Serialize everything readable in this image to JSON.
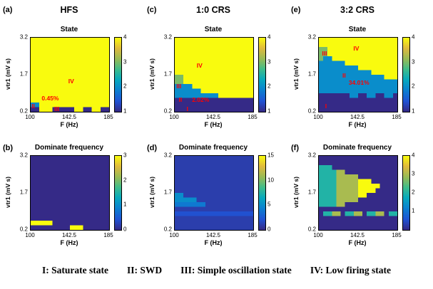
{
  "figure": {
    "background": "#ffffff",
    "annotation_color": "#ff0000"
  },
  "colormap": [
    [
      0.0,
      "#352a87"
    ],
    [
      0.14,
      "#2053d4"
    ],
    [
      0.29,
      "#0c80d0"
    ],
    [
      0.43,
      "#07a9bf"
    ],
    [
      0.57,
      "#3dbc8d"
    ],
    [
      0.71,
      "#95bb57"
    ],
    [
      0.86,
      "#e0ba3e"
    ],
    [
      1.0,
      "#f9fb0e"
    ]
  ],
  "caption": {
    "items": [
      "I: Saturate state",
      "II: SWD",
      "III: Simple oscillation state",
      "IV: Low firing state"
    ]
  },
  "chart_data": [
    {
      "type": "heatmap",
      "panel": "a",
      "row": "top",
      "panel_label": "(a)",
      "column_header": "HFS",
      "title": "State",
      "x": {
        "label": "F (Hz)",
        "range": [
          100,
          185
        ],
        "ticks": [
          100,
          142.5,
          185
        ]
      },
      "y": {
        "label": "vtr1 (mV s)",
        "range": [
          0.2,
          3.2
        ],
        "ticks": [
          3.2,
          1.7,
          0.2
        ]
      },
      "colorbar": {
        "domain": [
          1,
          4
        ],
        "ticks": [
          4,
          3,
          2,
          1
        ]
      },
      "annotations": [
        {
          "text": "IV",
          "x": 48,
          "y": 55
        },
        {
          "text": "0.45%",
          "x": 14,
          "y": 78
        },
        {
          "text": "II",
          "x": 1,
          "y": 88
        },
        {
          "text": "III",
          "x": 30,
          "y": 92
        }
      ],
      "values_encoding": "hex char per cell; rows top(v=3.2) to bottom(v=0.2); cols left(F=100) to right(F=185)",
      "values": [
        "444444444444444444",
        "444444444444444444",
        "444444444444444444",
        "444444444444444444",
        "444444444444444444",
        "444444444444444444",
        "444444444444444444",
        "444444444444444444",
        "444444444444444444",
        "444444444444444444",
        "444444444444444444",
        "444444444444444444",
        "444444444444444444",
        "444444444444444444",
        "224444444444444444",
        "114441111144114411"
      ]
    },
    {
      "type": "heatmap",
      "panel": "c",
      "row": "top",
      "panel_label": "(c)",
      "column_header": "1:0 CRS",
      "title": "State",
      "x": {
        "label": "F (Hz)",
        "range": [
          100,
          185
        ],
        "ticks": [
          100,
          142.5,
          185
        ]
      },
      "y": {
        "label": "vtr1 (mV s)",
        "range": [
          0.2,
          3.2
        ],
        "ticks": [
          3.2,
          1.7,
          0.2
        ]
      },
      "colorbar": {
        "domain": [
          1,
          4
        ],
        "ticks": [
          4,
          3,
          2,
          1
        ]
      },
      "annotations": [
        {
          "text": "IV",
          "x": 28,
          "y": 34
        },
        {
          "text": "III",
          "x": 2,
          "y": 62
        },
        {
          "text": "II",
          "x": 5,
          "y": 80
        },
        {
          "text": "2.02%",
          "x": 22,
          "y": 80
        },
        {
          "text": "I",
          "x": 15,
          "y": 92
        }
      ],
      "values_encoding": "hex char per cell; rows top(v=3.2) to bottom(v=0.2); cols left(F=100) to right(F=185)",
      "values": [
        "444444444444444444",
        "444444444444444444",
        "444444444444444444",
        "444444444444444444",
        "444444444444444444",
        "444444444444444444",
        "444444444444444444",
        "444444444444444444",
        "334444444444444444",
        "334444444444444444",
        "222244444444444444",
        "222222444444444444",
        "222222222244444444",
        "111111111111111111",
        "111111111111111111",
        "111111111111111111"
      ]
    },
    {
      "type": "heatmap",
      "panel": "e",
      "row": "top",
      "panel_label": "(e)",
      "column_header": "3:2 CRS",
      "title": "State",
      "x": {
        "label": "F (Hz)",
        "range": [
          100,
          185
        ],
        "ticks": [
          100,
          142.5,
          185
        ]
      },
      "y": {
        "label": "vtr1 (mV s)",
        "range": [
          0.2,
          3.2
        ],
        "ticks": [
          3.2,
          1.7,
          0.2
        ]
      },
      "colorbar": {
        "domain": [
          1,
          4
        ],
        "ticks": [
          4,
          3,
          2,
          1
        ]
      },
      "annotations": [
        {
          "text": "III",
          "x": 4,
          "y": 17
        },
        {
          "text": "IV",
          "x": 44,
          "y": 11
        },
        {
          "text": "II",
          "x": 30,
          "y": 47
        },
        {
          "text": "34.01%",
          "x": 38,
          "y": 57
        },
        {
          "text": "I",
          "x": 8,
          "y": 88
        }
      ],
      "values_encoding": "hex char per cell; rows top(v=3.2) to bottom(v=0.2); cols left(F=100) to right(F=185)",
      "values": [
        "444444444444444444",
        "444444444444444444",
        "334444444444444444",
        "334444444444444444",
        "322444444444444444",
        "222222444444444444",
        "222222222444444444",
        "222222222222444444",
        "222222222222222444",
        "222222222222222222",
        "222222222222222222",
        "222222222222222222",
        "111111122112211221",
        "111111111111111111",
        "111111111111111111",
        "111111111111111111"
      ]
    },
    {
      "type": "heatmap",
      "panel": "b",
      "row": "bottom",
      "panel_label": "(b)",
      "column_header": "",
      "title": "Dominate frequency",
      "x": {
        "label": "F (Hz)",
        "range": [
          100,
          185
        ],
        "ticks": [
          100,
          142.5,
          185
        ]
      },
      "y": {
        "label": "vtr1 (mV s)",
        "range": [
          0.2,
          3.2
        ],
        "ticks": [
          3.2,
          1.7,
          0.2
        ]
      },
      "colorbar": {
        "domain": [
          0,
          3
        ],
        "ticks": [
          3,
          2,
          1,
          0
        ]
      },
      "annotations": [],
      "values_encoding": "hex char per cell; rows top(v=3.2) to bottom(v=0.2); cols left(F=100) to right(F=185)",
      "values": [
        "000000000000000000",
        "000000000000000000",
        "000000000000000000",
        "000000000000000000",
        "000000000000000000",
        "000000000000000000",
        "000000000000000000",
        "000000000000000000",
        "000000000000000000",
        "000000000000000000",
        "000000000000000000",
        "000000000000000000",
        "000000000000000000",
        "000000000000000000",
        "333330000000000000",
        "000000000333000000"
      ]
    },
    {
      "type": "heatmap",
      "panel": "d",
      "row": "bottom",
      "panel_label": "(d)",
      "column_header": "",
      "title": "Dominate frequency",
      "x": {
        "label": "F (Hz)",
        "range": [
          100,
          185
        ],
        "ticks": [
          100,
          142.5,
          185
        ]
      },
      "y": {
        "label": "vtr1 (mV s)",
        "range": [
          0.2,
          3.2
        ],
        "ticks": [
          3.2,
          1.7,
          0.2
        ]
      },
      "colorbar": {
        "domain": [
          0,
          15
        ],
        "ticks": [
          15,
          10,
          5,
          0
        ]
      },
      "annotations": [],
      "values_encoding": "hex char per cell; rows top(v=3.2) to bottom(v=0.2); cols left(F=100) to right(F=185)",
      "values": [
        "111111111111111111",
        "111111111111111111",
        "111111111111111111",
        "111111111111111111",
        "111111111111111111",
        "111111111111111111",
        "111111111111111111",
        "111111111111111111",
        "551111111111111111",
        "555551111111111111",
        "444444411111111111",
        "111111111111111111",
        "222222222222222222",
        "111111111111111111",
        "111111111111111111",
        "111111111111111111"
      ]
    },
    {
      "type": "heatmap",
      "panel": "f",
      "row": "bottom",
      "panel_label": "(f)",
      "column_header": "",
      "title": "Dominate frequency",
      "x": {
        "label": "F (Hz)",
        "range": [
          100,
          185
        ],
        "ticks": [
          100,
          142.5,
          185
        ]
      },
      "y": {
        "label": "vtr1 (mV s)",
        "range": [
          0.2,
          3.2
        ],
        "ticks": [
          3.2,
          1.7,
          0.2
        ]
      },
      "colorbar": {
        "domain": [
          0,
          4
        ],
        "ticks": [
          4,
          3,
          2,
          1
        ]
      },
      "annotations": [],
      "values_encoding": "hex char per cell; rows top(v=3.2) to bottom(v=0.2); cols left(F=100) to right(F=185)",
      "values": [
        "000000000000000000",
        "000000000000000000",
        "222000000000000000",
        "222233000000000000",
        "222233333000000000",
        "222233333444000000",
        "222233333444440000",
        "222233333444400000",
        "222233333440000000",
        "222233333000000000",
        "222233000000000000",
        "000000000000000000",
        "022330223302233022",
        "000000000000000000",
        "000000000000000000",
        "000000000000000000"
      ]
    }
  ]
}
